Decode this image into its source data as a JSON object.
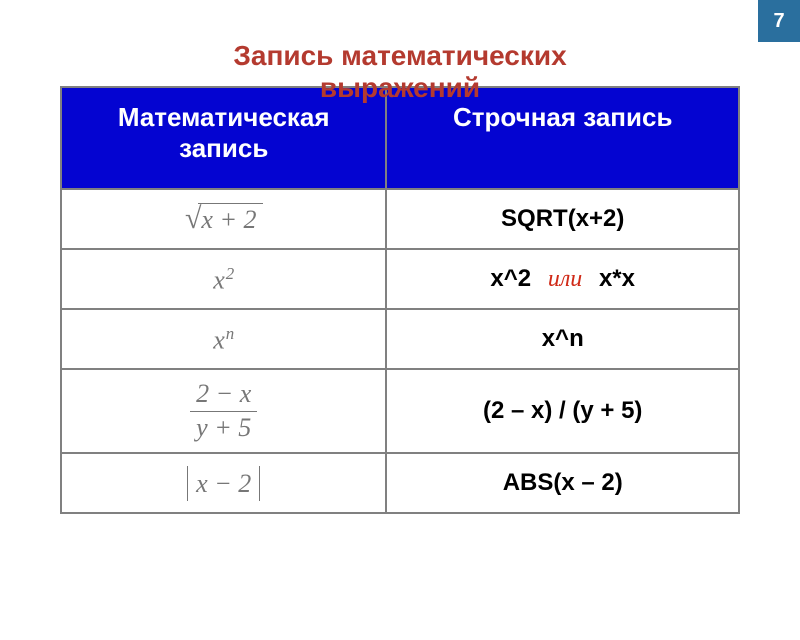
{
  "page_number": "7",
  "title_line1": "Запись математических",
  "title_line2": "выражений",
  "header": {
    "col_math": "Математическая запись",
    "col_string": "Строчная запись"
  },
  "rows": [
    {
      "math": {
        "type": "sqrt",
        "arg_a": "x",
        "arg_b": "2"
      },
      "string": "SQRT(x+2)"
    },
    {
      "math": {
        "type": "power",
        "base": "x",
        "exp": "2"
      },
      "string_a": "x^2",
      "ili": "или",
      "string_b": "x*x"
    },
    {
      "math": {
        "type": "power",
        "base": "x",
        "exp": "n"
      },
      "string": "x^n"
    },
    {
      "math": {
        "type": "frac",
        "num_a": "2",
        "num_b": "x",
        "den_a": "y",
        "den_b": "5"
      },
      "string": "(2 – x) / (y + 5)"
    },
    {
      "math": {
        "type": "abs",
        "a": "x",
        "b": "2"
      },
      "string": "ABS(x – 2)"
    }
  ],
  "style": {
    "header_bg": "#0404d1",
    "header_fg": "#ffffff",
    "title_color": "#b43a2f",
    "badge_bg": "#2a6f9e",
    "border_color": "#808080",
    "math_color": "#777777",
    "ili_color": "#d02a18",
    "cell_font_size": 24,
    "header_font_size": 26,
    "title_font_size": 28
  }
}
